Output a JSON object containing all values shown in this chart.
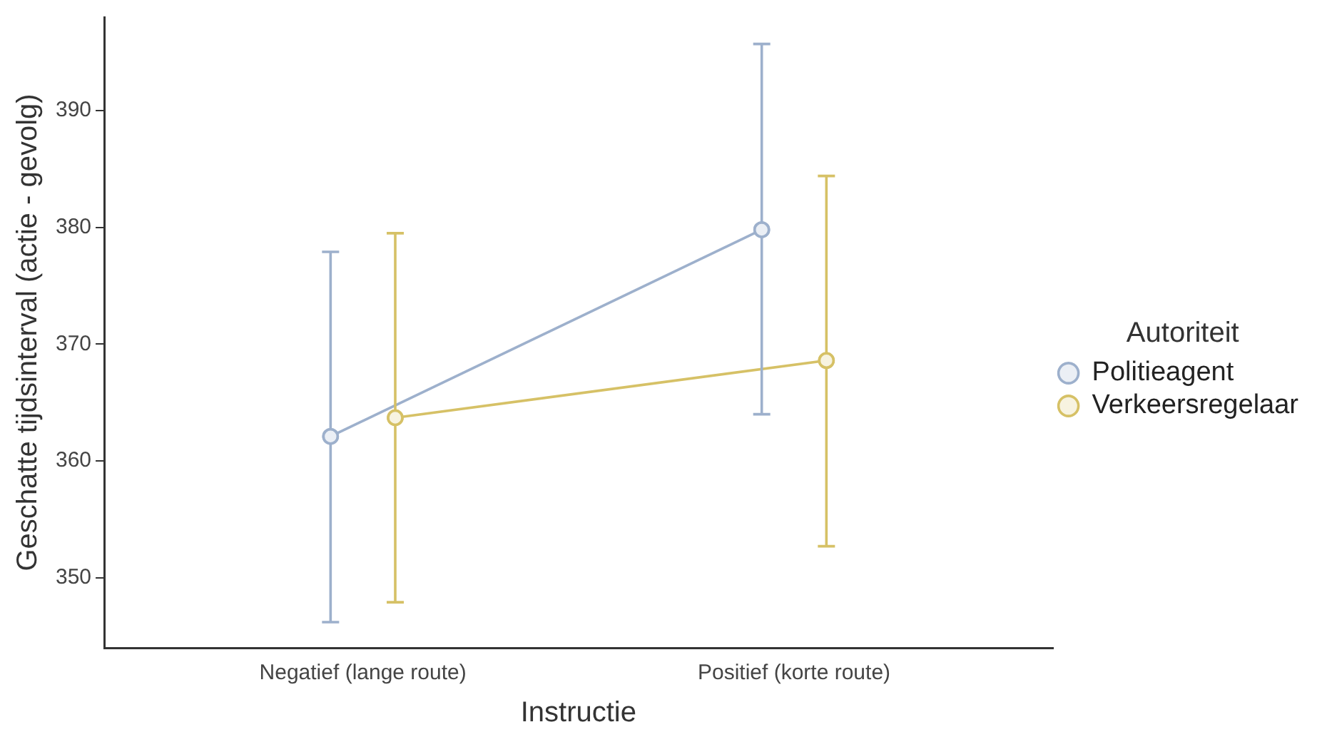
{
  "chart_data": {
    "type": "line",
    "xlabel": "Instructie",
    "ylabel": "Geschatte tijdsinterval (actie - gevolg)",
    "legend_title": "Autoriteit",
    "categories": [
      "Negatief (lange route)",
      "Positief (korte route)"
    ],
    "series": [
      {
        "name": "Politieagent",
        "color": "#9db0cc",
        "values": [
          362.1,
          379.8
        ],
        "errors": [
          [
            346.2,
            377.9
          ],
          [
            364.0,
            395.7
          ]
        ]
      },
      {
        "name": "Verkeersregelaar",
        "color": "#d6c166",
        "values": [
          363.7,
          368.6
        ],
        "errors": [
          [
            347.9,
            379.5
          ],
          [
            352.7,
            384.4
          ]
        ]
      }
    ],
    "ylim": [
      344,
      398
    ],
    "yticks": [
      350,
      360,
      370,
      380,
      390
    ],
    "grid": false,
    "legend": "right",
    "marker": "circle",
    "line_style": "solid"
  }
}
